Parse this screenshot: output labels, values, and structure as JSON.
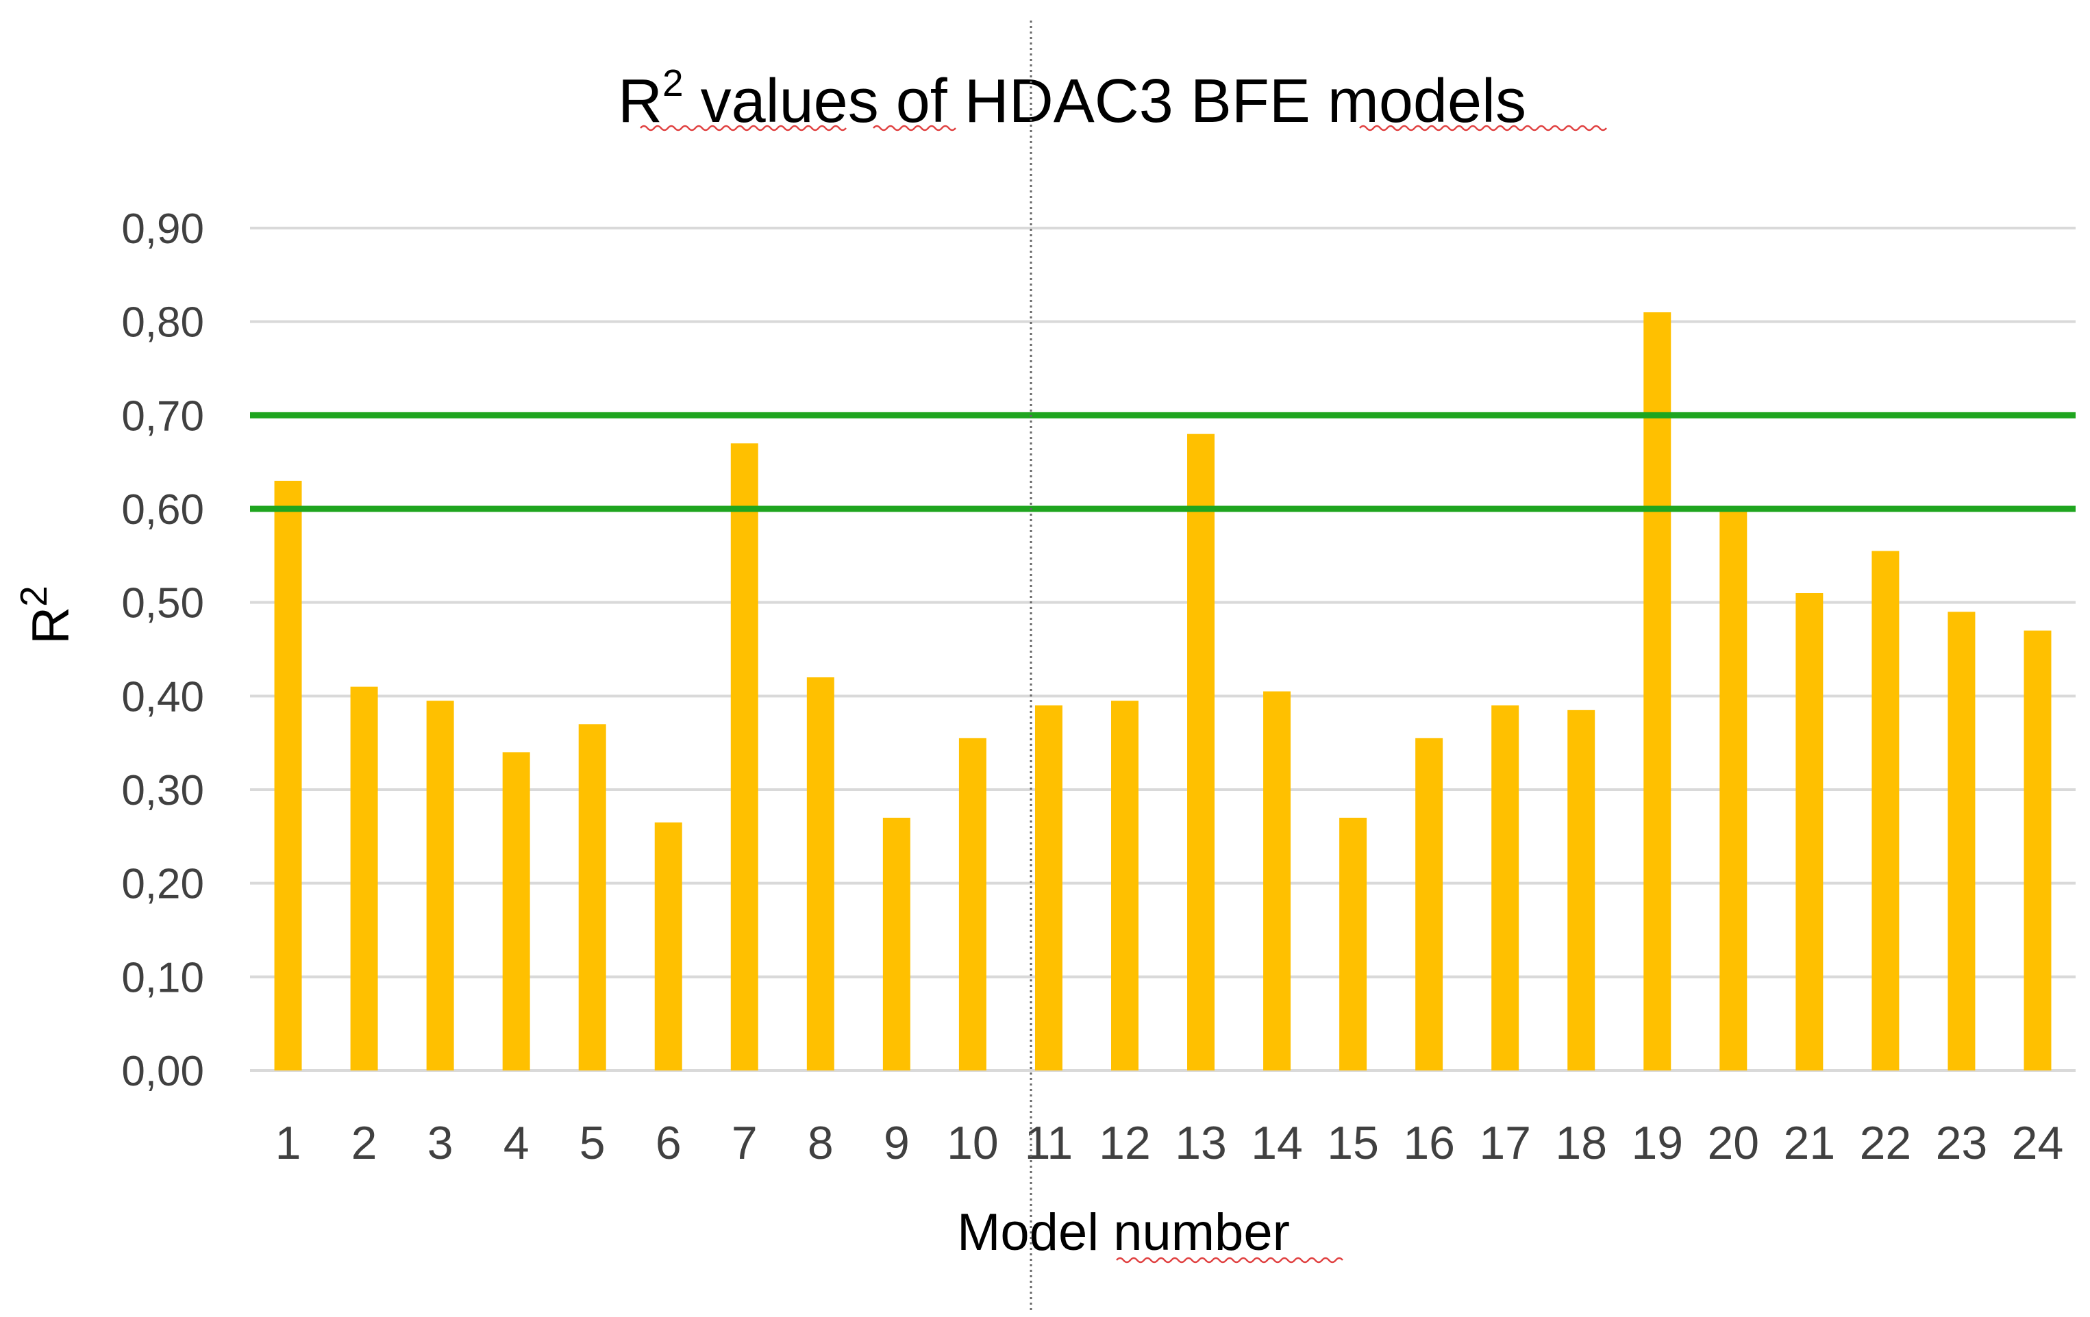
{
  "chart_data": {
    "type": "bar",
    "title": "R2 values of HDAC3 BFE models",
    "title_parts": {
      "base": "R",
      "sup": "2",
      "rest": " values of HDAC3 BFE models"
    },
    "xlabel": "Model number",
    "ylabel": "R2",
    "ylabel_parts": {
      "base": "R",
      "sup": "2"
    },
    "categories": [
      "1",
      "2",
      "3",
      "4",
      "5",
      "6",
      "7",
      "8",
      "9",
      "10",
      "11",
      "12",
      "13",
      "14",
      "15",
      "16",
      "17",
      "18",
      "19",
      "20",
      "21",
      "22",
      "23",
      "24"
    ],
    "values": [
      0.63,
      0.41,
      0.395,
      0.34,
      0.37,
      0.265,
      0.67,
      0.42,
      0.27,
      0.355,
      0.39,
      0.395,
      0.68,
      0.405,
      0.27,
      0.355,
      0.39,
      0.385,
      0.81,
      0.6,
      0.51,
      0.555,
      0.49,
      0.47
    ],
    "yticks": [
      "0,00",
      "0,10",
      "0,20",
      "0,30",
      "0,40",
      "0,50",
      "0,60",
      "0,70",
      "0,80",
      "0,90"
    ],
    "ylim": [
      0,
      0.9
    ],
    "reference_lines": [
      0.6,
      0.7
    ],
    "grid": true,
    "colors": {
      "bar": "#FFC000",
      "reference_line": "#1FA51F",
      "grid": "#D9D9D9",
      "divider": "#666666"
    }
  }
}
